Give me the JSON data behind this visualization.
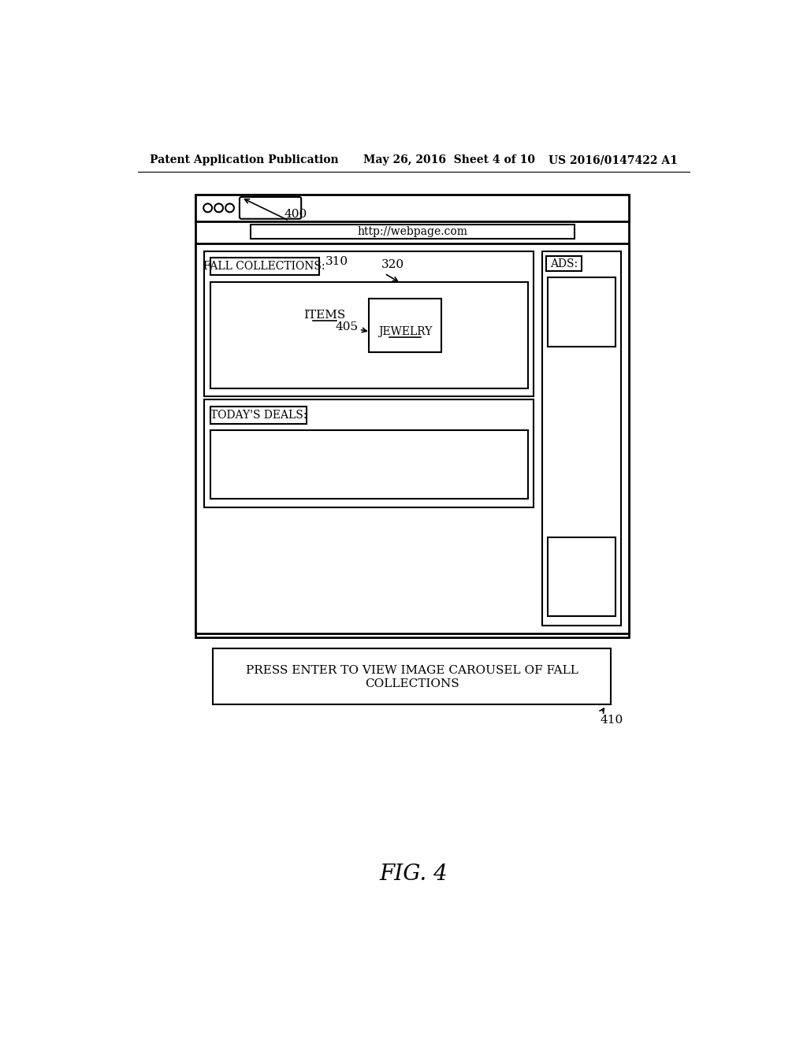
{
  "bg_color": "#ffffff",
  "header_text_left": "Patent Application Publication",
  "header_text_mid": "May 26, 2016  Sheet 4 of 10",
  "header_text_right": "US 2016/0147422 A1",
  "fig_label": "FIG. 4",
  "label_400": "400",
  "label_310": "310",
  "label_320": "320",
  "label_405": "405",
  "label_410": "410",
  "url_text": "http://webpage.com",
  "fall_collections_text": "FALL COLLECTIONS:",
  "items_text": "ITEMS",
  "jewelry_text": "JEWELRY",
  "ads_text": "ADS:",
  "todays_deals_text": "TODAY'S DEALS:",
  "press_enter_line1": "PRESS ENTER TO VIEW IMAGE CAROUSEL OF FALL",
  "press_enter_line2": "COLLECTIONS"
}
